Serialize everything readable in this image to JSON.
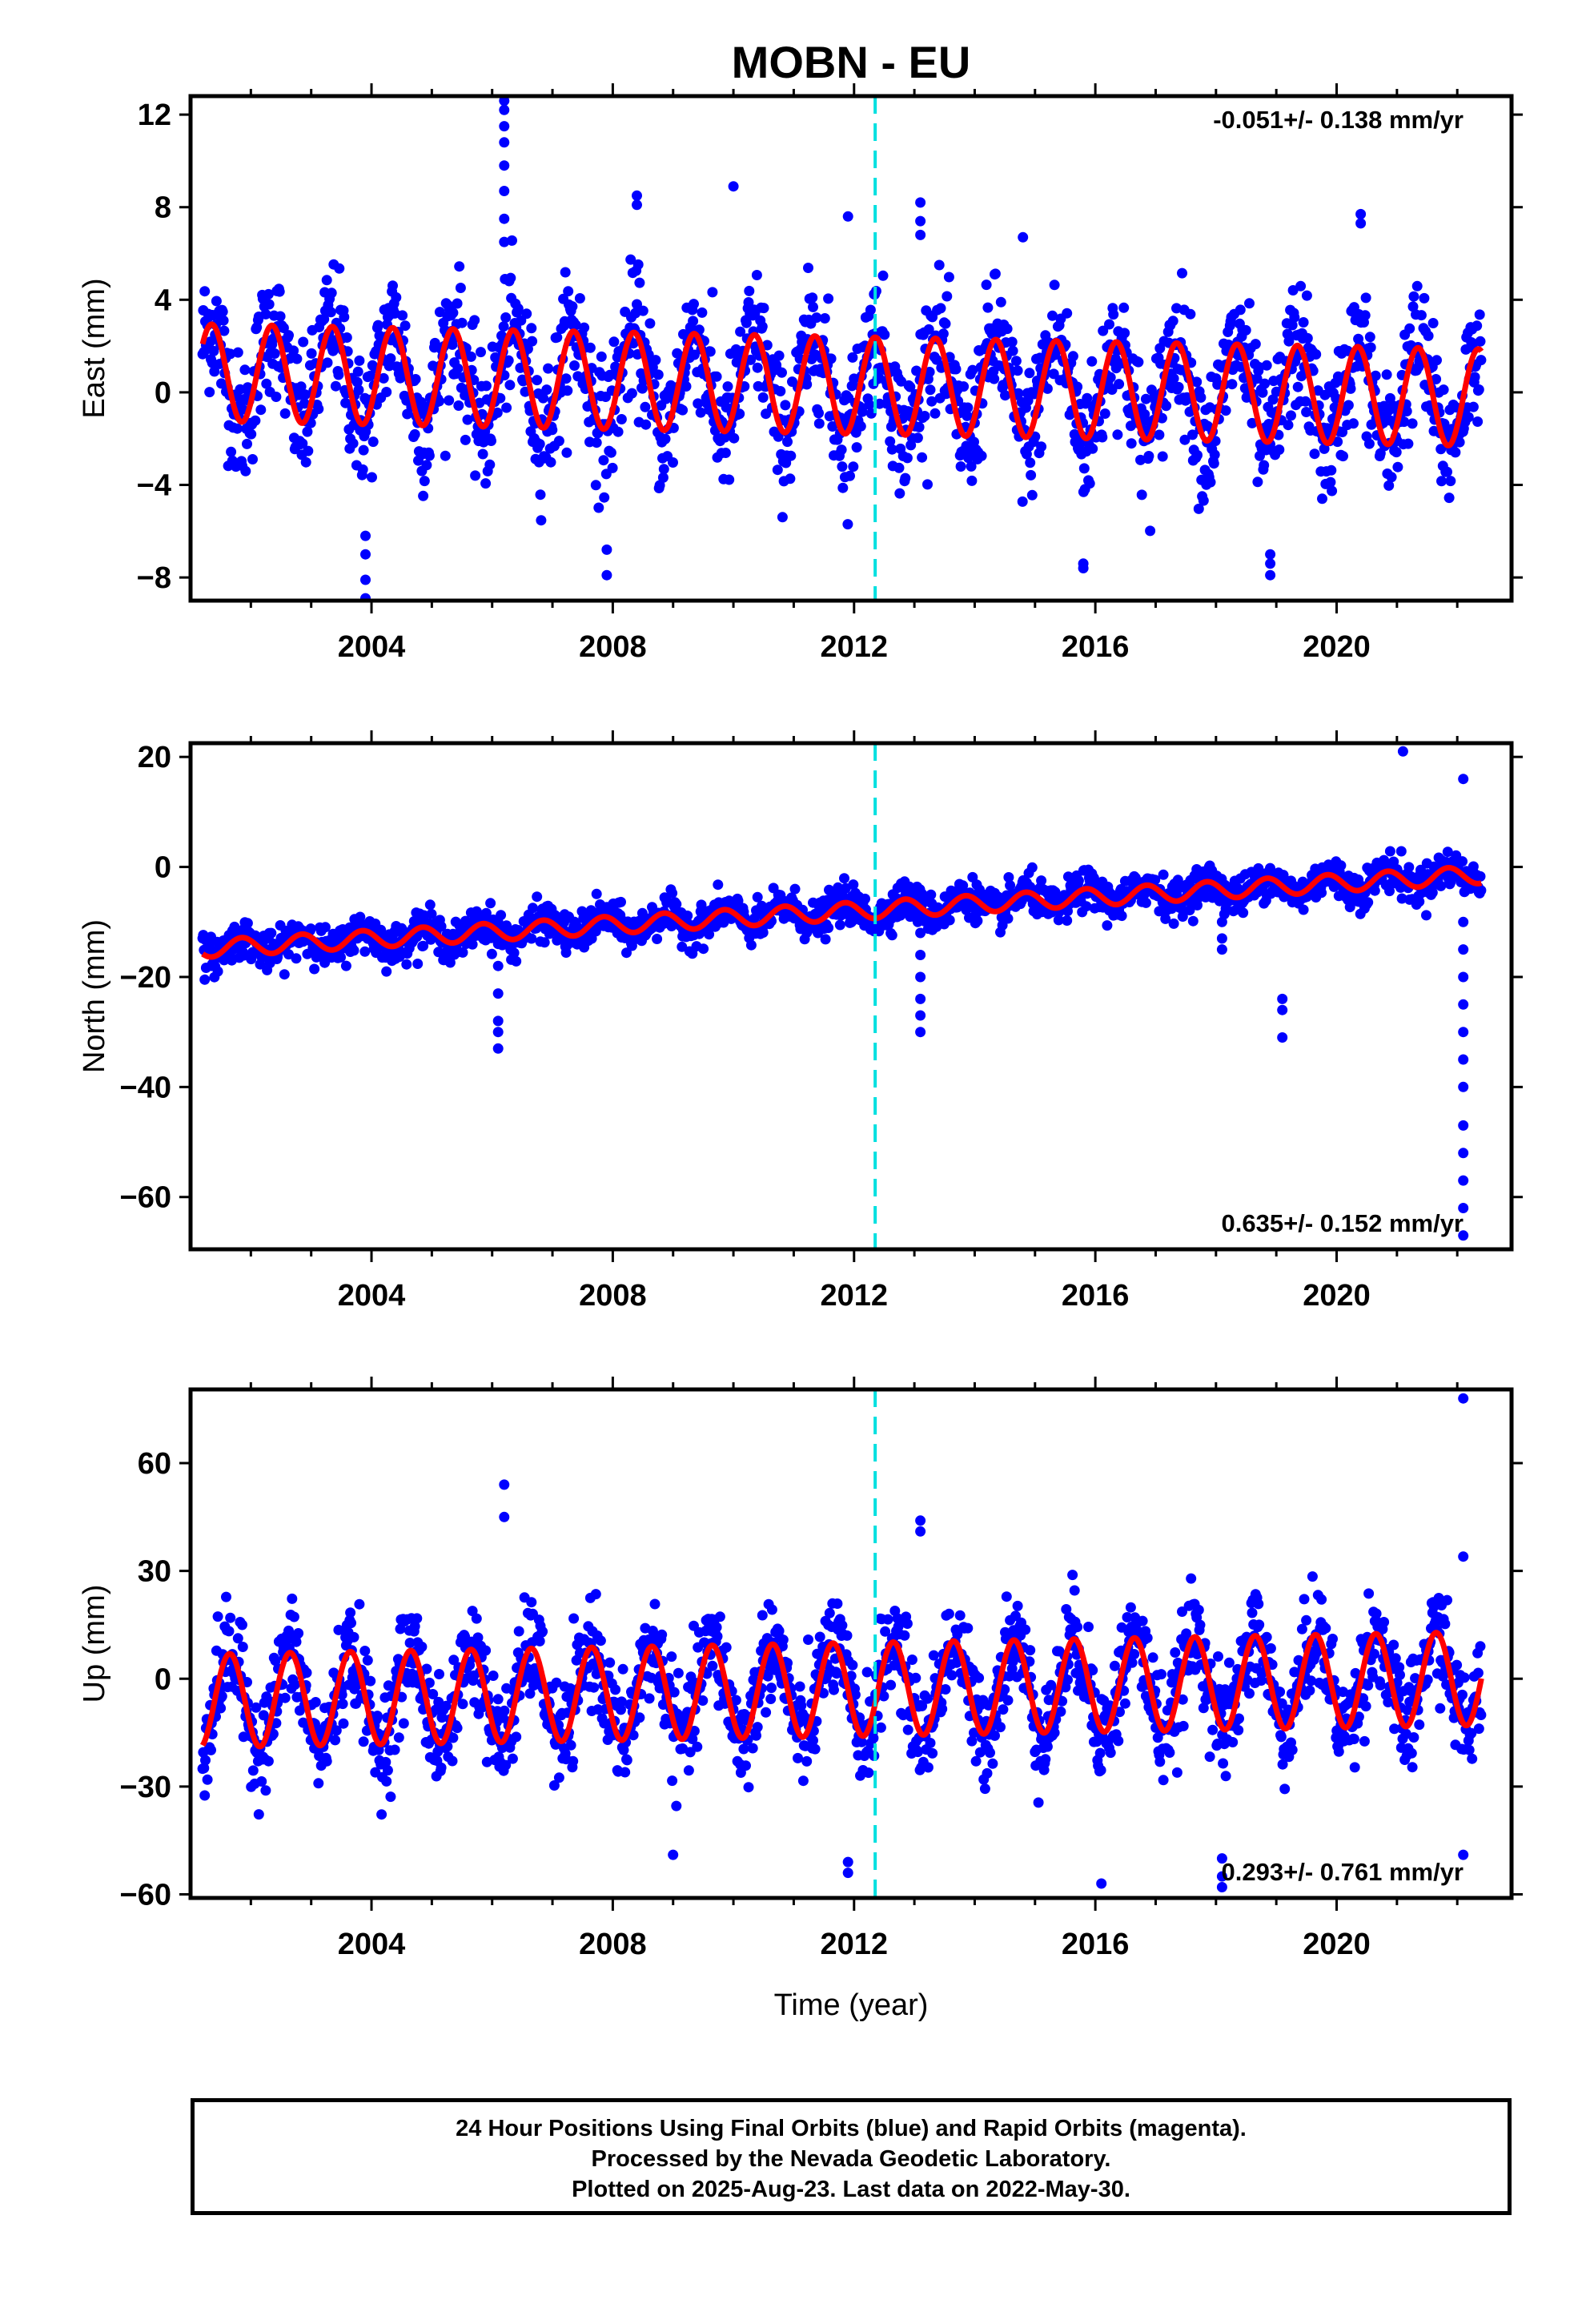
{
  "figure": {
    "title": "MOBN - EU",
    "xlabel": "Time (year)"
  },
  "chart_data": [
    {
      "type": "scatter",
      "name": "east",
      "ylabel": "East (mm)",
      "xlim": [
        2001.0,
        2022.9
      ],
      "ylim": [
        -9.0,
        12.8
      ],
      "yticks": [
        12,
        8,
        4,
        0,
        -4,
        -8
      ],
      "xticks": [
        2004,
        2008,
        2012,
        2016,
        2020
      ],
      "rate_label": "-0.051+/- 0.138 mm/yr",
      "rate_position": "top-right",
      "trend_mm_per_yr": -0.051,
      "offset_mm": 0.3,
      "annual_amplitude_mm": 2.1,
      "annual_peak_phase_yr": 0.35,
      "scatter_sd_mm": 1.4,
      "spike_events": [
        {
          "x": 2003.9,
          "values": [
            -6.2,
            -7.0,
            -8.1,
            -8.9
          ]
        },
        {
          "x": 2006.2,
          "values": [
            12.6,
            12.2,
            11.5,
            10.8,
            9.8,
            8.7,
            7.5,
            6.5
          ]
        },
        {
          "x": 2007.9,
          "values": [
            -6.8,
            -7.9
          ]
        },
        {
          "x": 2008.4,
          "values": [
            8.5,
            8.1
          ]
        },
        {
          "x": 2010.0,
          "values": [
            8.9
          ]
        },
        {
          "x": 2011.9,
          "values": [
            7.6
          ]
        },
        {
          "x": 2013.1,
          "values": [
            8.2,
            7.4,
            6.8
          ]
        },
        {
          "x": 2014.8,
          "values": [
            6.7
          ]
        },
        {
          "x": 2015.8,
          "values": [
            -7.4,
            -7.6
          ]
        },
        {
          "x": 2018.9,
          "values": [
            -7.0,
            -7.4,
            -7.9
          ]
        },
        {
          "x": 2020.4,
          "values": [
            7.7,
            7.3
          ]
        }
      ]
    },
    {
      "type": "scatter",
      "name": "north",
      "ylabel": "North (mm)",
      "xlim": [
        2001.0,
        2022.9
      ],
      "ylim": [
        -69.5,
        22.5
      ],
      "yticks": [
        20,
        0,
        -20,
        -40,
        -60
      ],
      "xticks": [
        2004,
        2008,
        2012,
        2016,
        2020
      ],
      "rate_label": "0.635+/- 0.152 mm/yr",
      "rate_position": "bottom-right",
      "trend_mm_per_yr": 0.635,
      "offset_mm": -8.0,
      "annual_amplitude_mm": 1.6,
      "annual_peak_phase_yr": 0.85,
      "scatter_sd_mm": 1.7,
      "spike_events": [
        {
          "x": 2006.1,
          "values": [
            -10,
            -14,
            -18,
            -23,
            -28,
            -30,
            -33
          ]
        },
        {
          "x": 2013.1,
          "values": [
            -12,
            -16,
            -20,
            -24,
            -27,
            -30
          ]
        },
        {
          "x": 2018.1,
          "values": [
            -10,
            -13,
            -15
          ]
        },
        {
          "x": 2019.1,
          "values": [
            -24,
            -26,
            -31
          ]
        },
        {
          "x": 2021.1,
          "values": [
            21
          ]
        },
        {
          "x": 2022.1,
          "values": [
            -10,
            -15,
            -20,
            -25,
            -30,
            -35,
            -40,
            -47,
            -52,
            -57,
            -62,
            -67
          ]
        },
        {
          "x": 2022.1,
          "values": [
            16
          ]
        }
      ]
    },
    {
      "type": "scatter",
      "name": "up",
      "ylabel": "Up (mm)",
      "xlim": [
        2001.0,
        2022.9
      ],
      "ylim": [
        -61.0,
        80.5
      ],
      "yticks": [
        60,
        30,
        0,
        -30,
        -60
      ],
      "xticks": [
        2004,
        2008,
        2012,
        2016,
        2020
      ],
      "rate_label": "0.293+/- 0.761 mm/yr",
      "rate_position": "bottom-right",
      "trend_mm_per_yr": 0.293,
      "offset_mm": -3.0,
      "annual_amplitude_mm": 13.0,
      "annual_peak_phase_yr": 0.65,
      "scatter_sd_mm": 7.0,
      "spike_events": [
        {
          "x": 2006.2,
          "values": [
            54,
            45
          ]
        },
        {
          "x": 2009.0,
          "values": [
            -49
          ]
        },
        {
          "x": 2011.9,
          "values": [
            -51,
            -54
          ]
        },
        {
          "x": 2013.1,
          "values": [
            44,
            41
          ]
        },
        {
          "x": 2016.1,
          "values": [
            -57
          ]
        },
        {
          "x": 2018.1,
          "values": [
            -50,
            -55,
            -58
          ]
        },
        {
          "x": 2022.1,
          "values": [
            78,
            34,
            -49
          ]
        }
      ]
    }
  ],
  "change_line_x": 2012.35,
  "colors": {
    "final_orbits": "#0000ff",
    "model_fit": "#ff0000",
    "change_line": "#00e0e0",
    "frame": "#000000"
  },
  "caption": {
    "line1": "24 Hour Positions Using Final Orbits (blue) and Rapid Orbits (magenta).",
    "line2": "Processed by the Nevada Geodetic Laboratory.",
    "line3": "Plotted on 2025-Aug-23. Last data on 2022-May-30."
  }
}
